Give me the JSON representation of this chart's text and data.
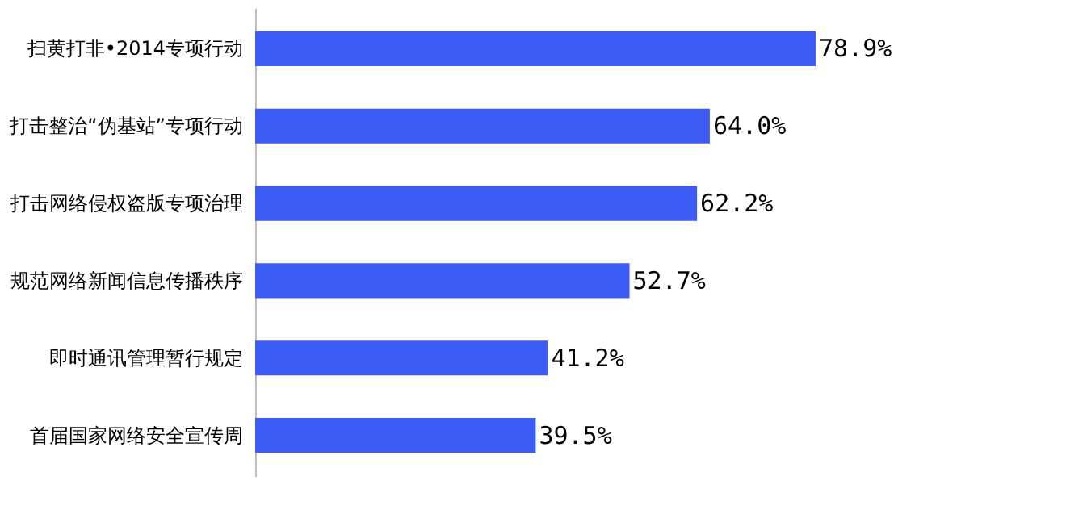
{
  "chart_data": {
    "type": "bar",
    "orientation": "horizontal",
    "categories": [
      "扫黄打非•2014专项行动",
      "打击整治“伪基站”专项行动",
      "打击网络侵权盗版专项治理",
      "规范网络新闻信息传播秩序",
      "即时通讯管理暂行规定",
      "首届国家网络安全宣传周"
    ],
    "values": [
      78.9,
      64.0,
      62.2,
      52.7,
      41.2,
      39.5
    ],
    "value_labels": [
      "78.9%",
      "64.0%",
      "62.2%",
      "52.7%",
      "41.2%",
      "39.5%"
    ],
    "color": "#3d5cf5",
    "tick_labels": "y"
  }
}
